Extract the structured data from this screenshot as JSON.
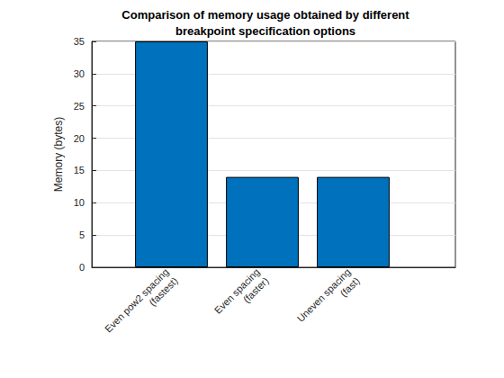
{
  "chart_data": {
    "type": "bar",
    "title": "Comparison of memory usage obtained by different\nbreakpoint specification options",
    "categories": [
      "Even pow2 spacing\n(fastest)",
      "Even spacing\n(faster)",
      "Uneven spacing\n(fast)"
    ],
    "values": [
      35,
      14,
      14
    ],
    "color": "#0072bd",
    "ylabel": "Memory (bytes)",
    "ylim": [
      0,
      35
    ],
    "yticks": [
      0,
      5,
      10,
      15,
      20,
      25,
      30,
      35
    ],
    "grid": true
  }
}
